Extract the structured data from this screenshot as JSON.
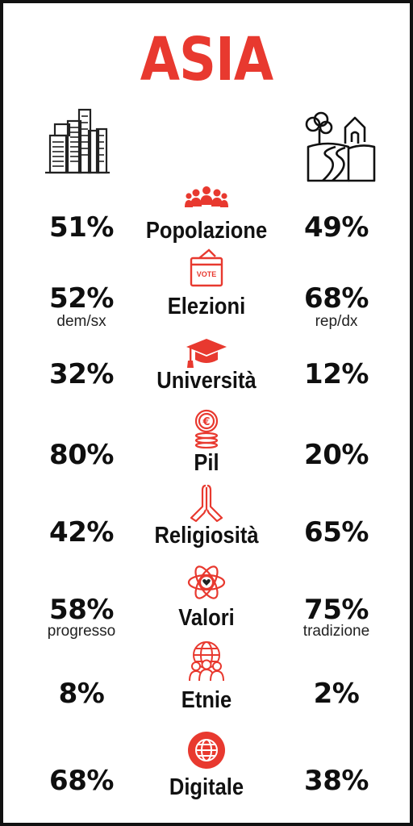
{
  "title": "ASIA",
  "colors": {
    "accent": "#e8392f",
    "text": "#111111"
  },
  "icons": {
    "left_header": "city-buildings-icon",
    "right_header": "countryside-village-icon"
  },
  "rows": [
    {
      "label": "Popolazione",
      "left": "51%",
      "right": "49%",
      "left_sub": "",
      "right_sub": "",
      "icon": "people-group-icon"
    },
    {
      "label": "Elezioni",
      "left": "52%",
      "right": "68%",
      "left_sub": "dem/sx",
      "right_sub": "rep/dx",
      "icon": "ballot-box-icon",
      "icon_text": "VOTE"
    },
    {
      "label": "Università",
      "left": "32%",
      "right": "12%",
      "left_sub": "",
      "right_sub": "",
      "icon": "graduation-cap-icon"
    },
    {
      "label": "Pil",
      "left": "80%",
      "right": "20%",
      "left_sub": "",
      "right_sub": "",
      "icon": "euro-coins-icon"
    },
    {
      "label": "Religiosità",
      "left": "42%",
      "right": "65%",
      "left_sub": "",
      "right_sub": "",
      "icon": "praying-hands-icon"
    },
    {
      "label": "Valori",
      "left": "58%",
      "right": "75%",
      "left_sub": "progresso",
      "right_sub": "tradizione",
      "icon": "heart-atom-icon"
    },
    {
      "label": "Etnie",
      "left": "8%",
      "right": "2%",
      "left_sub": "",
      "right_sub": "",
      "icon": "globe-people-icon"
    },
    {
      "label": "Digitale",
      "left": "68%",
      "right": "38%",
      "left_sub": "",
      "right_sub": "",
      "icon": "globe-circle-icon"
    }
  ]
}
